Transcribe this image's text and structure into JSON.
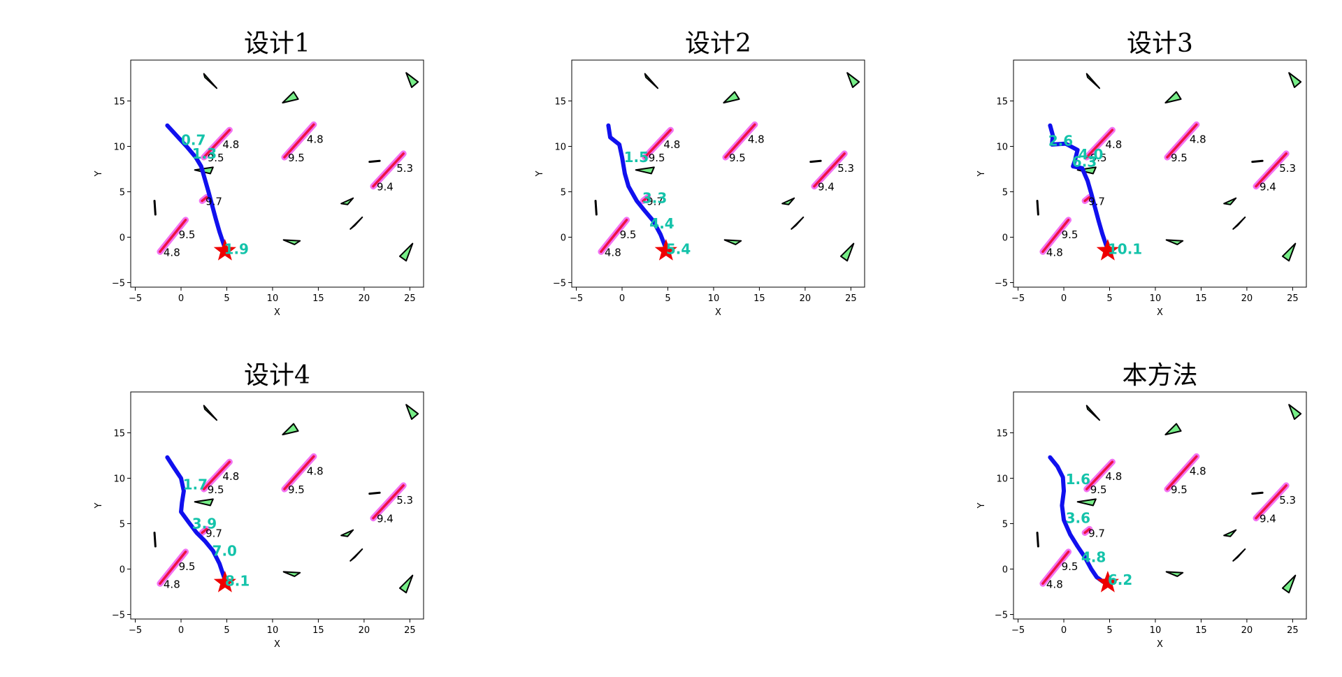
{
  "chart_data": [
    {
      "type": "scatter",
      "title": "设计1",
      "xlabel": "X",
      "ylabel": "Y",
      "xlim": [
        -5.5,
        26.5
      ],
      "ylim": [
        -5.5,
        19.5
      ],
      "xticks": [
        -5,
        0,
        5,
        10,
        15,
        20,
        25
      ],
      "yticks": [
        -5,
        0,
        5,
        10,
        15
      ],
      "path": [
        [
          -1.5,
          12.3
        ],
        [
          -0.5,
          11.2
        ],
        [
          0.6,
          10.0
        ],
        [
          1.6,
          8.8
        ],
        [
          2.2,
          7.8
        ],
        [
          2.6,
          6.4
        ],
        [
          3.0,
          5.0
        ],
        [
          3.4,
          3.5
        ],
        [
          3.8,
          2.0
        ],
        [
          4.2,
          0.6
        ],
        [
          4.6,
          -0.6
        ],
        [
          4.9,
          -1.5
        ]
      ],
      "path_labels": [
        {
          "x": 0,
          "y": 10.7,
          "text": "0.7"
        },
        {
          "x": 1.2,
          "y": 9.2,
          "text": "1.3"
        },
        {
          "x": 4.7,
          "y": -1.3,
          "text": "1.9"
        }
      ]
    },
    {
      "type": "scatter",
      "title": "设计2",
      "xlabel": "X",
      "ylabel": "Y",
      "xlim": [
        -5.5,
        26.5
      ],
      "ylim": [
        -5.5,
        19.5
      ],
      "xticks": [
        -5,
        0,
        5,
        10,
        15,
        20,
        25
      ],
      "yticks": [
        -5,
        0,
        5,
        10,
        15
      ],
      "path": [
        [
          -1.5,
          12.3
        ],
        [
          -1.3,
          11.0
        ],
        [
          -0.3,
          10.2
        ],
        [
          0.0,
          8.8
        ],
        [
          0.3,
          7.0
        ],
        [
          0.7,
          5.6
        ],
        [
          1.6,
          4.0
        ],
        [
          2.4,
          3.0
        ],
        [
          3.4,
          1.8
        ],
        [
          4.2,
          0.3
        ],
        [
          4.7,
          -1.0
        ],
        [
          4.9,
          -1.5
        ]
      ],
      "path_labels": [
        {
          "x": 0.2,
          "y": 8.8,
          "text": "1.5"
        },
        {
          "x": 2.2,
          "y": 4.3,
          "text": "3.3"
        },
        {
          "x": 3.0,
          "y": 1.5,
          "text": "4.4"
        },
        {
          "x": 4.8,
          "y": -1.3,
          "text": "5.4"
        }
      ]
    },
    {
      "type": "scatter",
      "title": "设计3",
      "xlabel": "X",
      "ylabel": "Y",
      "xlim": [
        -5.5,
        26.5
      ],
      "ylim": [
        -5.5,
        19.5
      ],
      "xticks": [
        -5,
        0,
        5,
        10,
        15,
        20,
        25
      ],
      "yticks": [
        -5,
        0,
        5,
        10,
        15
      ],
      "path": [
        [
          -1.5,
          12.3
        ],
        [
          -1.2,
          11.2
        ],
        [
          -1.3,
          10.2
        ],
        [
          0.2,
          10.3
        ],
        [
          1.5,
          9.6
        ],
        [
          1.2,
          8.4
        ],
        [
          1.0,
          7.8
        ],
        [
          2.0,
          7.6
        ],
        [
          2.6,
          6.2
        ],
        [
          3.0,
          4.8
        ],
        [
          3.4,
          3.3
        ],
        [
          3.8,
          1.8
        ],
        [
          4.2,
          0.4
        ],
        [
          4.6,
          -0.8
        ],
        [
          4.9,
          -1.5
        ]
      ],
      "path_labels": [
        {
          "x": -1.7,
          "y": 10.6,
          "text": "2.6"
        },
        {
          "x": 1.6,
          "y": 9.1,
          "text": "4.0"
        },
        {
          "x": 0.9,
          "y": 8.3,
          "text": "6.3"
        },
        {
          "x": 4.8,
          "y": -1.3,
          "text": "10.1"
        }
      ]
    },
    {
      "type": "scatter",
      "title": "设计4",
      "xlabel": "X",
      "ylabel": "Y",
      "xlim": [
        -5.5,
        26.5
      ],
      "ylim": [
        -5.5,
        19.5
      ],
      "xticks": [
        -5,
        0,
        5,
        10,
        15,
        20,
        25
      ],
      "yticks": [
        -5,
        0,
        5,
        10,
        15
      ],
      "path": [
        [
          -1.5,
          12.3
        ],
        [
          -0.8,
          11.2
        ],
        [
          0.0,
          10.0
        ],
        [
          0.3,
          8.6
        ],
        [
          0.1,
          7.3
        ],
        [
          0.0,
          6.3
        ],
        [
          0.8,
          5.2
        ],
        [
          1.7,
          4.0
        ],
        [
          2.6,
          3.1
        ],
        [
          3.5,
          2.0
        ],
        [
          4.2,
          0.6
        ],
        [
          4.6,
          -0.6
        ],
        [
          4.9,
          -1.5
        ]
      ],
      "path_labels": [
        {
          "x": 0.2,
          "y": 9.3,
          "text": "1.7"
        },
        {
          "x": 1.2,
          "y": 5.0,
          "text": "3.9"
        },
        {
          "x": 3.4,
          "y": 2.0,
          "text": "7.0"
        },
        {
          "x": 4.8,
          "y": -1.3,
          "text": "8.1"
        }
      ]
    },
    {
      "type": "scatter",
      "title": "本方法",
      "xlabel": "X",
      "ylabel": "Y",
      "xlim": [
        -5.5,
        26.5
      ],
      "ylim": [
        -5.5,
        19.5
      ],
      "xticks": [
        -5,
        0,
        5,
        10,
        15,
        20,
        25
      ],
      "yticks": [
        -5,
        0,
        5,
        10,
        15
      ],
      "path": [
        [
          -1.5,
          12.3
        ],
        [
          -0.7,
          11.3
        ],
        [
          -0.1,
          10.1
        ],
        [
          0.0,
          8.6
        ],
        [
          -0.2,
          7.0
        ],
        [
          0.0,
          5.4
        ],
        [
          0.7,
          3.8
        ],
        [
          1.5,
          2.5
        ],
        [
          2.3,
          1.3
        ],
        [
          3.0,
          0.0
        ],
        [
          3.6,
          -0.9
        ],
        [
          4.3,
          -1.4
        ],
        [
          4.9,
          -1.5
        ]
      ],
      "path_labels": [
        {
          "x": 0.2,
          "y": 9.9,
          "text": "1.6"
        },
        {
          "x": 0.2,
          "y": 5.6,
          "text": "3.6"
        },
        {
          "x": 1.9,
          "y": 1.3,
          "text": "4.8"
        },
        {
          "x": 4.8,
          "y": -1.2,
          "text": "6.2"
        }
      ]
    }
  ],
  "scene": {
    "goal": {
      "x": 4.8,
      "y": -1.5
    },
    "segments": [
      {
        "x1": 2.5,
        "y1": 8.8,
        "x2": 5.3,
        "y2": 11.8,
        "label_start": "9.5",
        "label_end": "4.8"
      },
      {
        "x1": 11.3,
        "y1": 8.8,
        "x2": 14.5,
        "y2": 12.4,
        "label_start": "9.5",
        "label_end": "4.8"
      },
      {
        "x1": 21.0,
        "y1": 5.6,
        "x2": 24.3,
        "y2": 9.2,
        "label_start": "9.4",
        "label_end": "5.3"
      },
      {
        "x1": -2.3,
        "y1": -1.6,
        "x2": 0.5,
        "y2": 1.9,
        "label_start": "4.8",
        "label_end": "9.5"
      },
      {
        "x1": 2.3,
        "y1": 4.0,
        "x2": 2.8,
        "y2": 4.4,
        "label_start": "9.7",
        "label_end": ""
      }
    ],
    "triangles": [
      [
        [
          2.5,
          18.0
        ],
        [
          3.9,
          16.4
        ],
        [
          2.6,
          17.6
        ]
      ],
      [
        [
          12.3,
          16.0
        ],
        [
          11.1,
          14.8
        ],
        [
          12.8,
          15.2
        ]
      ],
      [
        [
          24.6,
          18.1
        ],
        [
          25.9,
          17.1
        ],
        [
          25.2,
          16.5
        ]
      ],
      [
        [
          1.5,
          7.4
        ],
        [
          3.5,
          7.7
        ],
        [
          3.2,
          7.0
        ]
      ],
      [
        [
          17.5,
          3.7
        ],
        [
          18.8,
          4.3
        ],
        [
          18.2,
          3.6
        ]
      ],
      [
        [
          18.5,
          0.9
        ],
        [
          19.8,
          2.2
        ],
        [
          19.0,
          1.3
        ]
      ],
      [
        [
          11.2,
          -0.3
        ],
        [
          13.0,
          -0.4
        ],
        [
          12.4,
          -0.8
        ]
      ],
      [
        [
          23.9,
          -2.1
        ],
        [
          25.3,
          -0.7
        ],
        [
          24.6,
          -2.6
        ]
      ]
    ],
    "small_marks": [
      {
        "x1": -2.9,
        "y1": 4.0,
        "x2": -2.8,
        "y2": 2.5
      },
      {
        "x1": 20.6,
        "y1": 8.3,
        "x2": 21.7,
        "y2": 8.4
      }
    ]
  },
  "colors": {
    "path": "#1010ee",
    "label": "#14c3aa",
    "goal": "#ee0000",
    "segment_outer": "#ee44ee",
    "segment_inner": "#ee1144",
    "triangle_fill": "#77ee88"
  }
}
